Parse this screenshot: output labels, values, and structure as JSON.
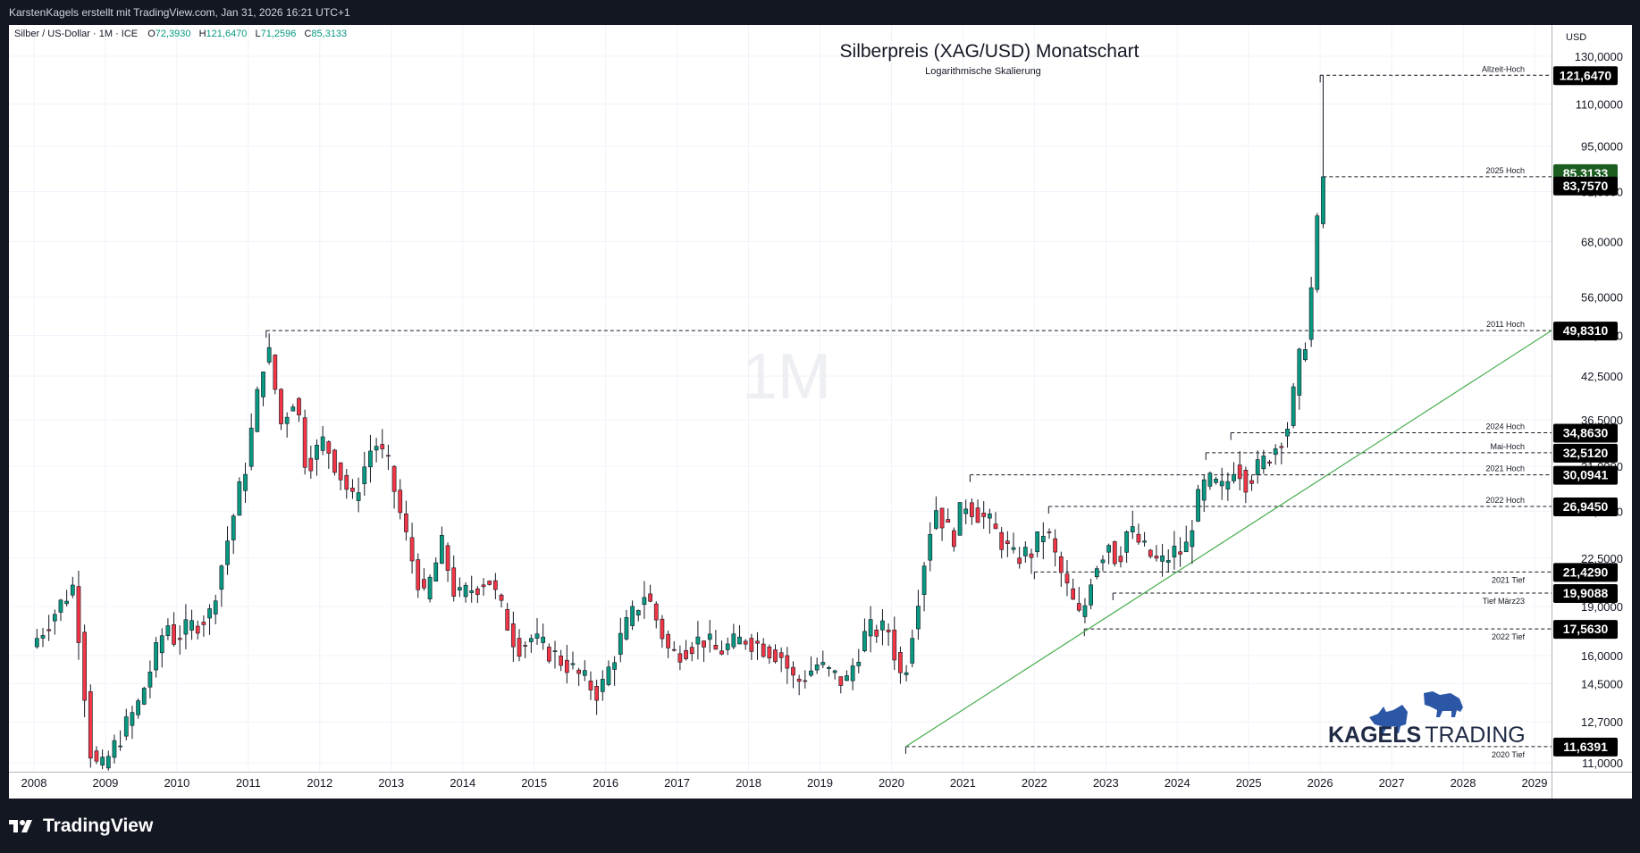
{
  "header": {
    "author_line": "KarstenKagels erstellt mit TradingView.com, Jan 31, 2026 16:21 UTC+1"
  },
  "footer": {
    "brand": "TradingView"
  },
  "watermark": "1M",
  "logo": {
    "part1": "KAGELS",
    "part2": "TRADING"
  },
  "colors": {
    "up": "#089981",
    "down": "#f23645",
    "trend": "#4caf50",
    "last": "#1b5e20"
  },
  "chart_data": {
    "type": "candlestick",
    "title": "Silberpreis (XAG/USD) Monatschart",
    "subtitle": "Logarithmische Skalierung",
    "symbol_info": "Silber / US-Dollar · 1M · ICE",
    "ohlc": [
      {
        "k": "O",
        "v": "72,3930"
      },
      {
        "k": "H",
        "v": "121,6470"
      },
      {
        "k": "L",
        "v": "71,2596"
      },
      {
        "k": "C",
        "v": "85,3133"
      }
    ],
    "currency": "USD",
    "y_scale": "log",
    "y_ticks": [
      "130,0000",
      "110,0000",
      "95,0000",
      "81,0000",
      "68,0000",
      "56,0000",
      "49,0000",
      "42,5000",
      "36,5000",
      "31,0000",
      "26,5000",
      "22,5000",
      "19,0000",
      "16,0000",
      "14,5000",
      "12,7000",
      "11,0000"
    ],
    "x_ticks": [
      "2008",
      "2009",
      "2010",
      "2011",
      "2012",
      "2013",
      "2014",
      "2015",
      "2016",
      "2017",
      "2018",
      "2019",
      "2020",
      "2021",
      "2022",
      "2023",
      "2024",
      "2025",
      "2026",
      "2027",
      "2028",
      "2029"
    ],
    "price_labels": [
      {
        "label": "Allzeit-Hoch",
        "value": "121,6470"
      },
      {
        "label": "2025 Hoch",
        "value": "85,3133"
      },
      {
        "label": "",
        "value": "83,7570"
      },
      {
        "label": "2011 Hoch",
        "value": "49,8310"
      },
      {
        "label": "2024 Hoch",
        "value": "34,8630"
      },
      {
        "label": "Mai-Hoch",
        "value": "32,5120"
      },
      {
        "label": "2021 Hoch",
        "value": "30,0941"
      },
      {
        "label": "2022 Hoch",
        "value": "26,9450"
      },
      {
        "label": "2021 Tief",
        "value": "21,4290"
      },
      {
        "label": "Tief März23",
        "value": "19,9088"
      },
      {
        "label": "2022 Tief",
        "value": "17,5630"
      },
      {
        "label": "2020 Tief",
        "value": "11,6391"
      }
    ],
    "anchors": [
      [
        2008.0,
        16.5
      ],
      [
        2008.6,
        20.5
      ],
      [
        2008.85,
        11.0
      ],
      [
        2009.0,
        10.8
      ],
      [
        2009.5,
        13.5
      ],
      [
        2009.9,
        18.0
      ],
      [
        2010.0,
        17.0
      ],
      [
        2010.5,
        18.5
      ],
      [
        2010.9,
        28.0
      ],
      [
        2011.0,
        31.0
      ],
      [
        2011.3,
        48.0
      ],
      [
        2011.5,
        36.0
      ],
      [
        2011.7,
        40.0
      ],
      [
        2011.85,
        31.0
      ],
      [
        2012.1,
        34.0
      ],
      [
        2012.5,
        27.5
      ],
      [
        2012.8,
        34.0
      ],
      [
        2013.0,
        31.0
      ],
      [
        2013.3,
        23.0
      ],
      [
        2013.5,
        19.5
      ],
      [
        2013.75,
        23.5
      ],
      [
        2013.95,
        19.5
      ],
      [
        2014.4,
        21.0
      ],
      [
        2014.8,
        16.5
      ],
      [
        2015.0,
        17.0
      ],
      [
        2015.5,
        15.5
      ],
      [
        2015.95,
        14.0
      ],
      [
        2016.3,
        17.5
      ],
      [
        2016.6,
        20.0
      ],
      [
        2016.95,
        16.0
      ],
      [
        2017.4,
        17.0
      ],
      [
        2017.6,
        16.2
      ],
      [
        2018.0,
        17.0
      ],
      [
        2018.5,
        16.0
      ],
      [
        2018.7,
        14.5
      ],
      [
        2019.0,
        15.5
      ],
      [
        2019.4,
        14.5
      ],
      [
        2019.7,
        17.5
      ],
      [
        2020.0,
        17.5
      ],
      [
        2020.2,
        14.5
      ],
      [
        2020.55,
        24.0
      ],
      [
        2020.65,
        27.0
      ],
      [
        2020.9,
        24.0
      ],
      [
        2021.05,
        27.5
      ],
      [
        2021.4,
        25.5
      ],
      [
        2021.75,
        22.5
      ],
      [
        2022.0,
        23.0
      ],
      [
        2022.2,
        25.0
      ],
      [
        2022.4,
        21.5
      ],
      [
        2022.6,
        19.0
      ],
      [
        2022.7,
        18.0
      ],
      [
        2022.85,
        21.5
      ],
      [
        2023.1,
        24.0
      ],
      [
        2023.2,
        22.0
      ],
      [
        2023.35,
        25.0
      ],
      [
        2023.6,
        23.0
      ],
      [
        2023.8,
        22.0
      ],
      [
        2024.0,
        23.0
      ],
      [
        2024.15,
        23.0
      ],
      [
        2024.3,
        27.0
      ],
      [
        2024.45,
        29.5
      ],
      [
        2024.7,
        28.5
      ],
      [
        2024.85,
        31.5
      ],
      [
        2025.0,
        29.5
      ],
      [
        2025.2,
        31.0
      ],
      [
        2025.4,
        33.0
      ],
      [
        2025.6,
        36.0
      ],
      [
        2025.75,
        45.0
      ],
      [
        2025.85,
        49.0
      ],
      [
        2025.92,
        58.0
      ],
      [
        2026.0,
        72.0
      ],
      [
        2026.04,
        85.3
      ]
    ]
  }
}
